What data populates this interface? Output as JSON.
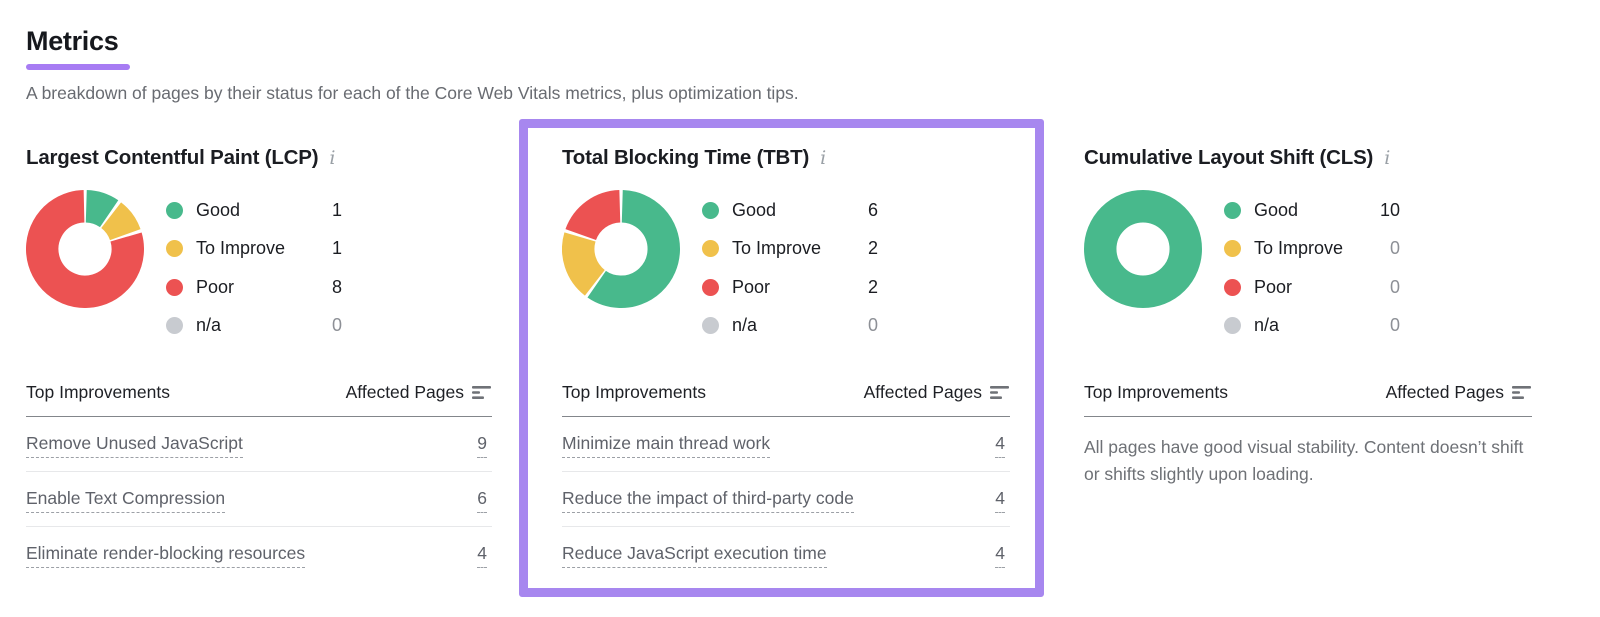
{
  "header": {
    "title": "Metrics",
    "subtitle": "A breakdown of pages by their status for each of the Core Web Vitals metrics, plus optimization tips."
  },
  "accent_color": "#A77CF3",
  "highlight_border_color": "#A787EF",
  "status_colors": {
    "good": "#48B98C",
    "to_improve": "#F0C14B",
    "poor": "#EC5252",
    "na": "#C8CBD0"
  },
  "cards": [
    {
      "title": "Largest Contentful Paint (LCP)",
      "info": "i",
      "highlighted": false,
      "legend": [
        {
          "label": "Good",
          "value": 1,
          "color": "#48B98C"
        },
        {
          "label": "To Improve",
          "value": 1,
          "color": "#F0C14B"
        },
        {
          "label": "Poor",
          "value": 8,
          "color": "#EC5252"
        },
        {
          "label": "n/a",
          "value": 0,
          "color": "#C8CBD0"
        }
      ],
      "table": {
        "improvements_header": "Top Improvements",
        "pages_header": "Affected Pages",
        "rows": [
          {
            "label": "Remove Unused JavaScript",
            "value": 9
          },
          {
            "label": "Enable Text Compression",
            "value": 6
          },
          {
            "label": "Eliminate render-blocking resources",
            "value": 4
          }
        ]
      }
    },
    {
      "title": "Total Blocking Time (TBT)",
      "info": "i",
      "highlighted": true,
      "legend": [
        {
          "label": "Good",
          "value": 6,
          "color": "#48B98C"
        },
        {
          "label": "To Improve",
          "value": 2,
          "color": "#F0C14B"
        },
        {
          "label": "Poor",
          "value": 2,
          "color": "#EC5252"
        },
        {
          "label": "n/a",
          "value": 0,
          "color": "#C8CBD0"
        }
      ],
      "table": {
        "improvements_header": "Top Improvements",
        "pages_header": "Affected Pages",
        "rows": [
          {
            "label": "Minimize main thread work",
            "value": 4
          },
          {
            "label": "Reduce the impact of third-party code",
            "value": 4
          },
          {
            "label": "Reduce JavaScript execution time",
            "value": 4
          }
        ]
      }
    },
    {
      "title": "Cumulative Layout Shift (CLS)",
      "info": "i",
      "highlighted": false,
      "legend": [
        {
          "label": "Good",
          "value": 10,
          "color": "#48B98C"
        },
        {
          "label": "To Improve",
          "value": 0,
          "color": "#F0C14B"
        },
        {
          "label": "Poor",
          "value": 0,
          "color": "#EC5252"
        },
        {
          "label": "n/a",
          "value": 0,
          "color": "#C8CBD0"
        }
      ],
      "table": {
        "improvements_header": "Top Improvements",
        "pages_header": "Affected Pages",
        "rows": [],
        "empty_message": "All pages have good visual stability. Content doesn’t shift or shifts slightly upon loading."
      }
    }
  ],
  "chart_data": [
    {
      "type": "pie",
      "donut": true,
      "title": "Largest Contentful Paint (LCP)",
      "labels": [
        "Good",
        "To Improve",
        "Poor",
        "n/a"
      ],
      "values": [
        1,
        1,
        8,
        0
      ],
      "colors": [
        "#48B98C",
        "#F0C14B",
        "#EC5252",
        "#C8CBD0"
      ],
      "legend_position": "right",
      "start_angle_deg": -90,
      "direction": "clockwise"
    },
    {
      "type": "pie",
      "donut": true,
      "title": "Total Blocking Time (TBT)",
      "labels": [
        "Good",
        "To Improve",
        "Poor",
        "n/a"
      ],
      "values": [
        6,
        2,
        2,
        0
      ],
      "colors": [
        "#48B98C",
        "#F0C14B",
        "#EC5252",
        "#C8CBD0"
      ],
      "legend_position": "right",
      "start_angle_deg": -90,
      "direction": "clockwise"
    },
    {
      "type": "pie",
      "donut": true,
      "title": "Cumulative Layout Shift (CLS)",
      "labels": [
        "Good",
        "To Improve",
        "Poor",
        "n/a"
      ],
      "values": [
        10,
        0,
        0,
        0
      ],
      "colors": [
        "#48B98C",
        "#F0C14B",
        "#EC5252",
        "#C8CBD0"
      ],
      "legend_position": "right",
      "start_angle_deg": -90,
      "direction": "clockwise"
    }
  ]
}
